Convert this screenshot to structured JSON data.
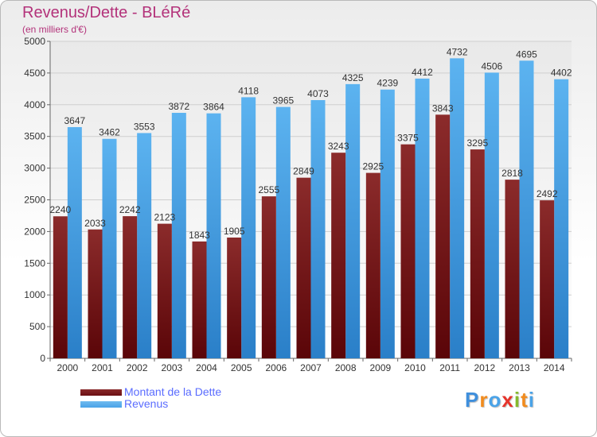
{
  "header": {
    "title": "Revenus/Dette - BLéRé",
    "subtitle": "(en milliers d'€)"
  },
  "legend": {
    "items": [
      {
        "label": "Montant de la Dette",
        "color": "#6b0e12"
      },
      {
        "label": "Revenus",
        "color": "#4aa3e8"
      }
    ]
  },
  "logo": {
    "letters": [
      "P",
      "r",
      "o",
      "x",
      "i",
      "t",
      "i"
    ],
    "colors": [
      "#3f8fdc",
      "#f28c1e",
      "#4aa3e8",
      "#e6332a",
      "#86b92d",
      "#f28c1e",
      "#4aa3e8"
    ]
  },
  "chart_data": {
    "type": "bar",
    "categories": [
      "2000",
      "2001",
      "2002",
      "2003",
      "2004",
      "2005",
      "2006",
      "2007",
      "2008",
      "2009",
      "2010",
      "2011",
      "2012",
      "2013",
      "2014"
    ],
    "series": [
      {
        "name": "Montant de la Dette",
        "values": [
          2240,
          2033,
          2242,
          2123,
          1843,
          1905,
          2555,
          2849,
          3243,
          2925,
          3375,
          3843,
          3295,
          2818,
          2492
        ],
        "labels": [
          "2240",
          "2033",
          "2242",
          "2123",
          "1843",
          "1905",
          "2555",
          "2849",
          "3243",
          "2925",
          "3375",
          "3843",
          "3295",
          "2818",
          "2492"
        ],
        "color": "#7a1a1a"
      },
      {
        "name": "Revenus",
        "values": [
          3647,
          3462,
          3553,
          3872,
          3864,
          4118,
          3965,
          4073,
          4325,
          4239,
          4412,
          4732,
          4506,
          4695,
          4402
        ],
        "labels": [
          "3647",
          "3462",
          "3553",
          "3872",
          "3864",
          "4118",
          "3965",
          "4073",
          "4325",
          "4239",
          "4412",
          "4732",
          "4506",
          "4695",
          "4402"
        ],
        "color": "#4aa3e8"
      }
    ],
    "yticks": [
      "0",
      "500",
      "1000",
      "1500",
      "2000",
      "2500",
      "3000",
      "3500",
      "4000",
      "4500",
      "5000"
    ],
    "ylim": [
      0,
      5000
    ],
    "grid": true
  }
}
